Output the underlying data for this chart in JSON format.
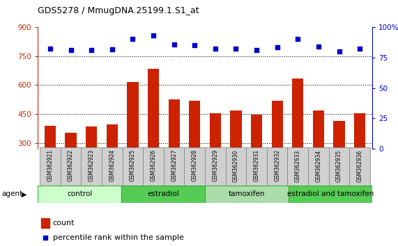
{
  "title": "GDS5278 / MmugDNA.25199.1.S1_at",
  "samples": [
    "GSM362921",
    "GSM362922",
    "GSM362923",
    "GSM362924",
    "GSM362925",
    "GSM362926",
    "GSM362927",
    "GSM362928",
    "GSM362929",
    "GSM362930",
    "GSM362931",
    "GSM362932",
    "GSM362933",
    "GSM362934",
    "GSM362935",
    "GSM362936"
  ],
  "counts": [
    390,
    355,
    385,
    395,
    615,
    685,
    525,
    520,
    455,
    470,
    445,
    520,
    635,
    470,
    415,
    455
  ],
  "percentile_left": [
    790,
    780,
    780,
    785,
    840,
    855,
    810,
    805,
    790,
    790,
    780,
    795,
    840,
    800,
    775,
    790
  ],
  "groups": [
    {
      "label": "control",
      "start": 0,
      "end": 4,
      "color": "#ccffcc"
    },
    {
      "label": "estradiol",
      "start": 4,
      "end": 8,
      "color": "#55cc55"
    },
    {
      "label": "tamoxifen",
      "start": 8,
      "end": 12,
      "color": "#aaddaa"
    },
    {
      "label": "estradiol and tamoxifen",
      "start": 12,
      "end": 16,
      "color": "#55cc55"
    }
  ],
  "bar_color": "#cc2200",
  "dot_color": "#0000cc",
  "ylim_left": [
    270,
    900
  ],
  "ylim_right": [
    0,
    100
  ],
  "yticks_left": [
    300,
    450,
    600,
    750,
    900
  ],
  "yticks_right": [
    0,
    25,
    50,
    75,
    100
  ],
  "grid_values": [
    300,
    450,
    600,
    750
  ],
  "bar_width": 0.55
}
